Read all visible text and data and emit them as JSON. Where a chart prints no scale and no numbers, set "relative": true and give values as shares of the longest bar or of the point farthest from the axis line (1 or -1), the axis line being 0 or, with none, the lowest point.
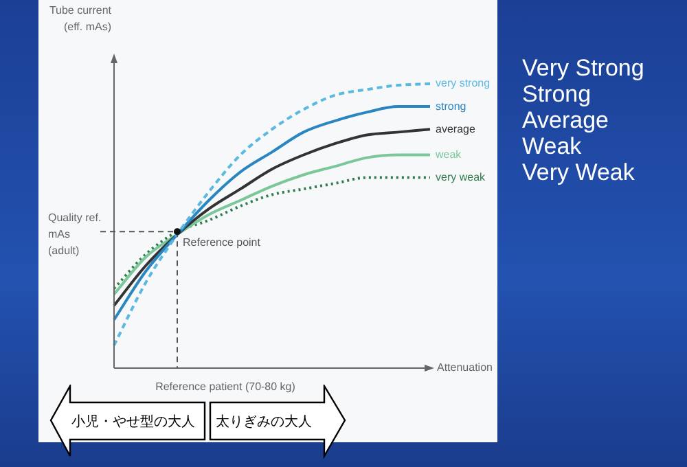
{
  "chart_data": {
    "type": "line",
    "relative": true,
    "ylabel": "Tube current (eff. mAs)",
    "xlabel": "Reference patient (70-80 kg)",
    "categories": [
      null,
      null,
      null,
      null,
      null,
      null,
      null,
      null,
      null,
      null,
      null
    ],
    "series": [
      {
        "name": "very strong",
        "color": "#5bb8e0",
        "line_style": "dashed",
        "values": [
          0.08,
          0.3,
          0.47,
          0.62,
          0.75,
          0.84,
          0.91,
          0.96,
          0.98,
          0.995,
          1
        ]
      },
      {
        "name": "strong",
        "color": "#2a86c0",
        "line_style": "solid",
        "values": [
          0.17,
          0.34,
          0.47,
          0.59,
          0.69,
          0.76,
          0.83,
          0.87,
          0.9,
          0.92,
          0.92
        ]
      },
      {
        "name": "average",
        "color": "#333333",
        "line_style": "solid",
        "values": [
          0.22,
          0.36,
          0.47,
          0.56,
          0.63,
          0.7,
          0.75,
          0.79,
          0.82,
          0.83,
          0.84
        ]
      },
      {
        "name": "weak",
        "color": "#7cc79a",
        "line_style": "solid",
        "values": [
          0.26,
          0.39,
          0.47,
          0.54,
          0.59,
          0.64,
          0.68,
          0.71,
          0.74,
          0.75,
          0.75
        ]
      },
      {
        "name": "very weak",
        "color": "#2e7d4f",
        "line_style": "dotted",
        "values": [
          0.28,
          0.4,
          0.48,
          0.52,
          0.57,
          0.61,
          0.63,
          0.65,
          0.67,
          0.67,
          0.67
        ]
      }
    ],
    "ref_lines": [
      {
        "axis": "y",
        "value": 0.48,
        "label": "Quality ref. mAs (adult)",
        "line_style": "dashed"
      }
    ],
    "annotations": [
      "Attenuation",
      "Reference point",
      "小児・やせ型の大人",
      "太りぎみの大人",
      "Very Strong",
      "Strong",
      "Average",
      "Weak",
      "Very Weak"
    ],
    "marker": "none"
  }
}
